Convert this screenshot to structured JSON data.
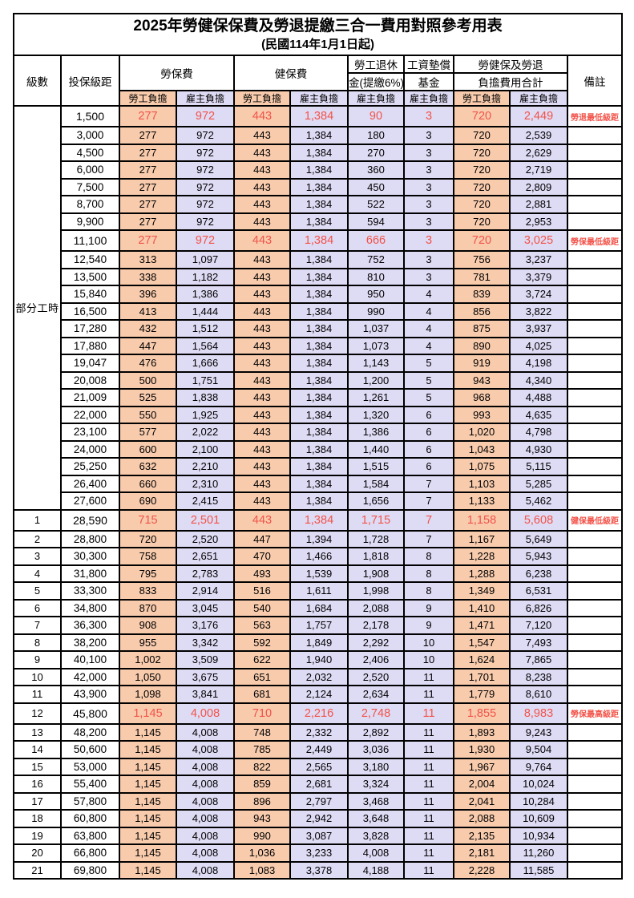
{
  "title": "2025年勞健保保費及勞退提繳三合一費用對照參考用表",
  "subtitle": "(民國114年1月1日起)",
  "colors": {
    "employee_bg": "#F8CBAD",
    "employer_bg": "#DEDBF4",
    "highlight_text": "#F25349",
    "border": "#000000"
  },
  "header": {
    "level": "級數",
    "bracket": "投保級距",
    "labor_insurance": "勞保費",
    "health_insurance": "健保費",
    "pension_line1": "勞工退休",
    "pension_line2": "金(提繳6%)",
    "wage_fund_line1": "工資墊償",
    "wage_fund_line2": "基金",
    "total_line1": "勞健保及勞退",
    "total_line2": "負擔費用合計",
    "remark": "備註",
    "employee": "勞工負擔",
    "employer": "雇主負擔"
  },
  "part_time_label": "部分工時",
  "rows": [
    {
      "level": null,
      "bracket": "1,500",
      "values": [
        "277",
        "972",
        "443",
        "1,384",
        "90",
        "3",
        "720",
        "2,449"
      ],
      "remark": "勞退最低級距",
      "highlight": true
    },
    {
      "level": null,
      "bracket": "3,000",
      "values": [
        "277",
        "972",
        "443",
        "1,384",
        "180",
        "3",
        "720",
        "2,539"
      ],
      "remark": "",
      "highlight": false
    },
    {
      "level": null,
      "bracket": "4,500",
      "values": [
        "277",
        "972",
        "443",
        "1,384",
        "270",
        "3",
        "720",
        "2,629"
      ],
      "remark": "",
      "highlight": false
    },
    {
      "level": null,
      "bracket": "6,000",
      "values": [
        "277",
        "972",
        "443",
        "1,384",
        "360",
        "3",
        "720",
        "2,719"
      ],
      "remark": "",
      "highlight": false
    },
    {
      "level": null,
      "bracket": "7,500",
      "values": [
        "277",
        "972",
        "443",
        "1,384",
        "450",
        "3",
        "720",
        "2,809"
      ],
      "remark": "",
      "highlight": false
    },
    {
      "level": null,
      "bracket": "8,700",
      "values": [
        "277",
        "972",
        "443",
        "1,384",
        "522",
        "3",
        "720",
        "2,881"
      ],
      "remark": "",
      "highlight": false
    },
    {
      "level": null,
      "bracket": "9,900",
      "values": [
        "277",
        "972",
        "443",
        "1,384",
        "594",
        "3",
        "720",
        "2,953"
      ],
      "remark": "",
      "highlight": false
    },
    {
      "level": null,
      "bracket": "11,100",
      "values": [
        "277",
        "972",
        "443",
        "1,384",
        "666",
        "3",
        "720",
        "3,025"
      ],
      "remark": "勞保最低級距",
      "highlight": true
    },
    {
      "level": null,
      "bracket": "12,540",
      "values": [
        "313",
        "1,097",
        "443",
        "1,384",
        "752",
        "3",
        "756",
        "3,237"
      ],
      "remark": "",
      "highlight": false
    },
    {
      "level": null,
      "bracket": "13,500",
      "values": [
        "338",
        "1,182",
        "443",
        "1,384",
        "810",
        "3",
        "781",
        "3,379"
      ],
      "remark": "",
      "highlight": false
    },
    {
      "level": null,
      "bracket": "15,840",
      "values": [
        "396",
        "1,386",
        "443",
        "1,384",
        "950",
        "4",
        "839",
        "3,724"
      ],
      "remark": "",
      "highlight": false
    },
    {
      "level": null,
      "bracket": "16,500",
      "values": [
        "413",
        "1,444",
        "443",
        "1,384",
        "990",
        "4",
        "856",
        "3,822"
      ],
      "remark": "",
      "highlight": false
    },
    {
      "level": null,
      "bracket": "17,280",
      "values": [
        "432",
        "1,512",
        "443",
        "1,384",
        "1,037",
        "4",
        "875",
        "3,937"
      ],
      "remark": "",
      "highlight": false
    },
    {
      "level": null,
      "bracket": "17,880",
      "values": [
        "447",
        "1,564",
        "443",
        "1,384",
        "1,073",
        "4",
        "890",
        "4,025"
      ],
      "remark": "",
      "highlight": false
    },
    {
      "level": null,
      "bracket": "19,047",
      "values": [
        "476",
        "1,666",
        "443",
        "1,384",
        "1,143",
        "5",
        "919",
        "4,198"
      ],
      "remark": "",
      "highlight": false
    },
    {
      "level": null,
      "bracket": "20,008",
      "values": [
        "500",
        "1,751",
        "443",
        "1,384",
        "1,200",
        "5",
        "943",
        "4,340"
      ],
      "remark": "",
      "highlight": false
    },
    {
      "level": null,
      "bracket": "21,009",
      "values": [
        "525",
        "1,838",
        "443",
        "1,384",
        "1,261",
        "5",
        "968",
        "4,488"
      ],
      "remark": "",
      "highlight": false
    },
    {
      "level": null,
      "bracket": "22,000",
      "values": [
        "550",
        "1,925",
        "443",
        "1,384",
        "1,320",
        "6",
        "993",
        "4,635"
      ],
      "remark": "",
      "highlight": false
    },
    {
      "level": null,
      "bracket": "23,100",
      "values": [
        "577",
        "2,022",
        "443",
        "1,384",
        "1,386",
        "6",
        "1,020",
        "4,798"
      ],
      "remark": "",
      "highlight": false
    },
    {
      "level": null,
      "bracket": "24,000",
      "values": [
        "600",
        "2,100",
        "443",
        "1,384",
        "1,440",
        "6",
        "1,043",
        "4,930"
      ],
      "remark": "",
      "highlight": false
    },
    {
      "level": null,
      "bracket": "25,250",
      "values": [
        "632",
        "2,210",
        "443",
        "1,384",
        "1,515",
        "6",
        "1,075",
        "5,115"
      ],
      "remark": "",
      "highlight": false
    },
    {
      "level": null,
      "bracket": "26,400",
      "values": [
        "660",
        "2,310",
        "443",
        "1,384",
        "1,584",
        "7",
        "1,103",
        "5,285"
      ],
      "remark": "",
      "highlight": false
    },
    {
      "level": null,
      "bracket": "27,600",
      "values": [
        "690",
        "2,415",
        "443",
        "1,384",
        "1,656",
        "7",
        "1,133",
        "5,462"
      ],
      "remark": "",
      "highlight": false
    },
    {
      "level": "1",
      "bracket": "28,590",
      "values": [
        "715",
        "2,501",
        "443",
        "1,384",
        "1,715",
        "7",
        "1,158",
        "5,608"
      ],
      "remark": "健保最低級距",
      "highlight": true
    },
    {
      "level": "2",
      "bracket": "28,800",
      "values": [
        "720",
        "2,520",
        "447",
        "1,394",
        "1,728",
        "7",
        "1,167",
        "5,649"
      ],
      "remark": "",
      "highlight": false
    },
    {
      "level": "3",
      "bracket": "30,300",
      "values": [
        "758",
        "2,651",
        "470",
        "1,466",
        "1,818",
        "8",
        "1,228",
        "5,943"
      ],
      "remark": "",
      "highlight": false
    },
    {
      "level": "4",
      "bracket": "31,800",
      "values": [
        "795",
        "2,783",
        "493",
        "1,539",
        "1,908",
        "8",
        "1,288",
        "6,238"
      ],
      "remark": "",
      "highlight": false
    },
    {
      "level": "5",
      "bracket": "33,300",
      "values": [
        "833",
        "2,914",
        "516",
        "1,611",
        "1,998",
        "8",
        "1,349",
        "6,531"
      ],
      "remark": "",
      "highlight": false
    },
    {
      "level": "6",
      "bracket": "34,800",
      "values": [
        "870",
        "3,045",
        "540",
        "1,684",
        "2,088",
        "9",
        "1,410",
        "6,826"
      ],
      "remark": "",
      "highlight": false
    },
    {
      "level": "7",
      "bracket": "36,300",
      "values": [
        "908",
        "3,176",
        "563",
        "1,757",
        "2,178",
        "9",
        "1,471",
        "7,120"
      ],
      "remark": "",
      "highlight": false
    },
    {
      "level": "8",
      "bracket": "38,200",
      "values": [
        "955",
        "3,342",
        "592",
        "1,849",
        "2,292",
        "10",
        "1,547",
        "7,493"
      ],
      "remark": "",
      "highlight": false
    },
    {
      "level": "9",
      "bracket": "40,100",
      "values": [
        "1,002",
        "3,509",
        "622",
        "1,940",
        "2,406",
        "10",
        "1,624",
        "7,865"
      ],
      "remark": "",
      "highlight": false
    },
    {
      "level": "10",
      "bracket": "42,000",
      "values": [
        "1,050",
        "3,675",
        "651",
        "2,032",
        "2,520",
        "11",
        "1,701",
        "8,238"
      ],
      "remark": "",
      "highlight": false
    },
    {
      "level": "11",
      "bracket": "43,900",
      "values": [
        "1,098",
        "3,841",
        "681",
        "2,124",
        "2,634",
        "11",
        "1,779",
        "8,610"
      ],
      "remark": "",
      "highlight": false
    },
    {
      "level": "12",
      "bracket": "45,800",
      "values": [
        "1,145",
        "4,008",
        "710",
        "2,216",
        "2,748",
        "11",
        "1,855",
        "8,983"
      ],
      "remark": "勞保最高級距",
      "highlight": true
    },
    {
      "level": "13",
      "bracket": "48,200",
      "values": [
        "1,145",
        "4,008",
        "748",
        "2,332",
        "2,892",
        "11",
        "1,893",
        "9,243"
      ],
      "remark": "",
      "highlight": false
    },
    {
      "level": "14",
      "bracket": "50,600",
      "values": [
        "1,145",
        "4,008",
        "785",
        "2,449",
        "3,036",
        "11",
        "1,930",
        "9,504"
      ],
      "remark": "",
      "highlight": false
    },
    {
      "level": "15",
      "bracket": "53,000",
      "values": [
        "1,145",
        "4,008",
        "822",
        "2,565",
        "3,180",
        "11",
        "1,967",
        "9,764"
      ],
      "remark": "",
      "highlight": false
    },
    {
      "level": "16",
      "bracket": "55,400",
      "values": [
        "1,145",
        "4,008",
        "859",
        "2,681",
        "3,324",
        "11",
        "2,004",
        "10,024"
      ],
      "remark": "",
      "highlight": false
    },
    {
      "level": "17",
      "bracket": "57,800",
      "values": [
        "1,145",
        "4,008",
        "896",
        "2,797",
        "3,468",
        "11",
        "2,041",
        "10,284"
      ],
      "remark": "",
      "highlight": false
    },
    {
      "level": "18",
      "bracket": "60,800",
      "values": [
        "1,145",
        "4,008",
        "943",
        "2,942",
        "3,648",
        "11",
        "2,088",
        "10,609"
      ],
      "remark": "",
      "highlight": false
    },
    {
      "level": "19",
      "bracket": "63,800",
      "values": [
        "1,145",
        "4,008",
        "990",
        "3,087",
        "3,828",
        "11",
        "2,135",
        "10,934"
      ],
      "remark": "",
      "highlight": false
    },
    {
      "level": "20",
      "bracket": "66,800",
      "values": [
        "1,145",
        "4,008",
        "1,036",
        "3,233",
        "4,008",
        "11",
        "2,181",
        "11,260"
      ],
      "remark": "",
      "highlight": false
    },
    {
      "level": "21",
      "bracket": "69,800",
      "values": [
        "1,145",
        "4,008",
        "1,083",
        "3,378",
        "4,188",
        "11",
        "2,228",
        "11,585"
      ],
      "remark": "",
      "highlight": false
    }
  ]
}
